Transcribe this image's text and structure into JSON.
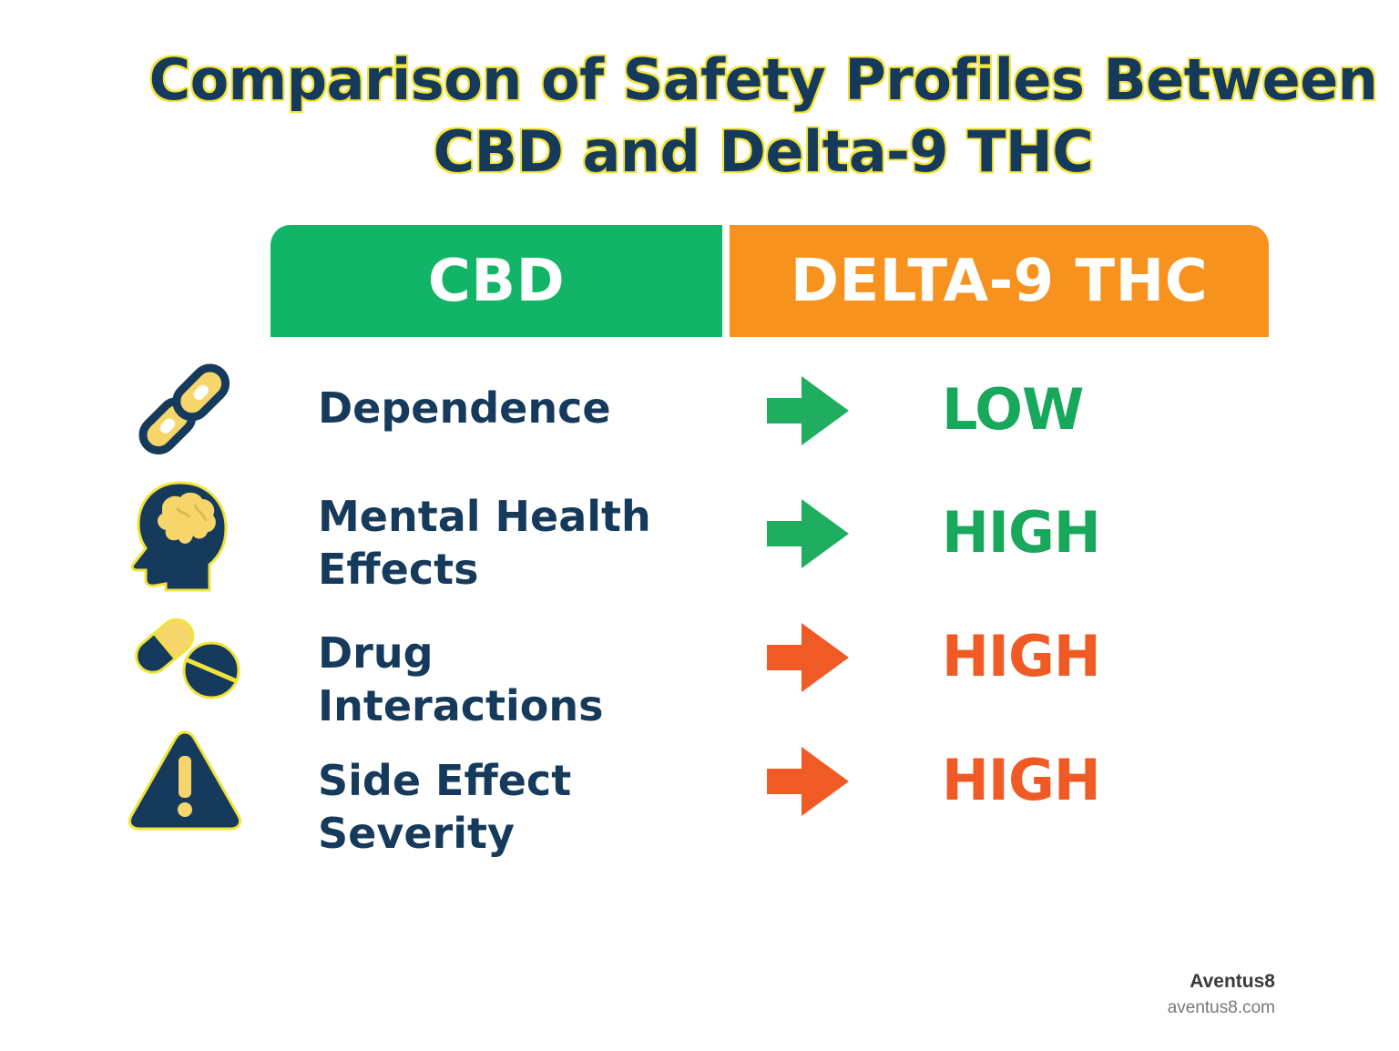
{
  "title": {
    "line1": "Comparison of Safety Profiles Between",
    "line2": "CBD and Delta-9 THC"
  },
  "columns": {
    "cbd": "CBD",
    "thc": "DELTA-9 THC"
  },
  "colors": {
    "cbd_header": "#12b567",
    "thc_header": "#f7921e",
    "low_green": "#18a85c",
    "high_green": "#18a85c",
    "high_red": "#f05a24",
    "navy": "#163a5c",
    "accent_yellow": "#f2e33a"
  },
  "rows": [
    {
      "icon": "chain-link-icon",
      "label": "Dependence",
      "level": "LOW",
      "level_color": "#18a85c",
      "arrow_color": "#1fae5f"
    },
    {
      "icon": "head-brain-icon",
      "label": "Mental Health\nEffects",
      "level": "HIGH",
      "level_color": "#18a85c",
      "arrow_color": "#1fae5f"
    },
    {
      "icon": "pills-icon",
      "label": "Drug\nInteractions",
      "level": "HIGH",
      "level_color": "#f05a24",
      "arrow_color": "#f05a24"
    },
    {
      "icon": "warning-icon",
      "label": "Side Effect\nSeverity",
      "level": "HIGH",
      "level_color": "#f05a24",
      "arrow_color": "#f05a24"
    }
  ],
  "brand": {
    "name": "Aventus8",
    "url": "aventus8.com"
  }
}
